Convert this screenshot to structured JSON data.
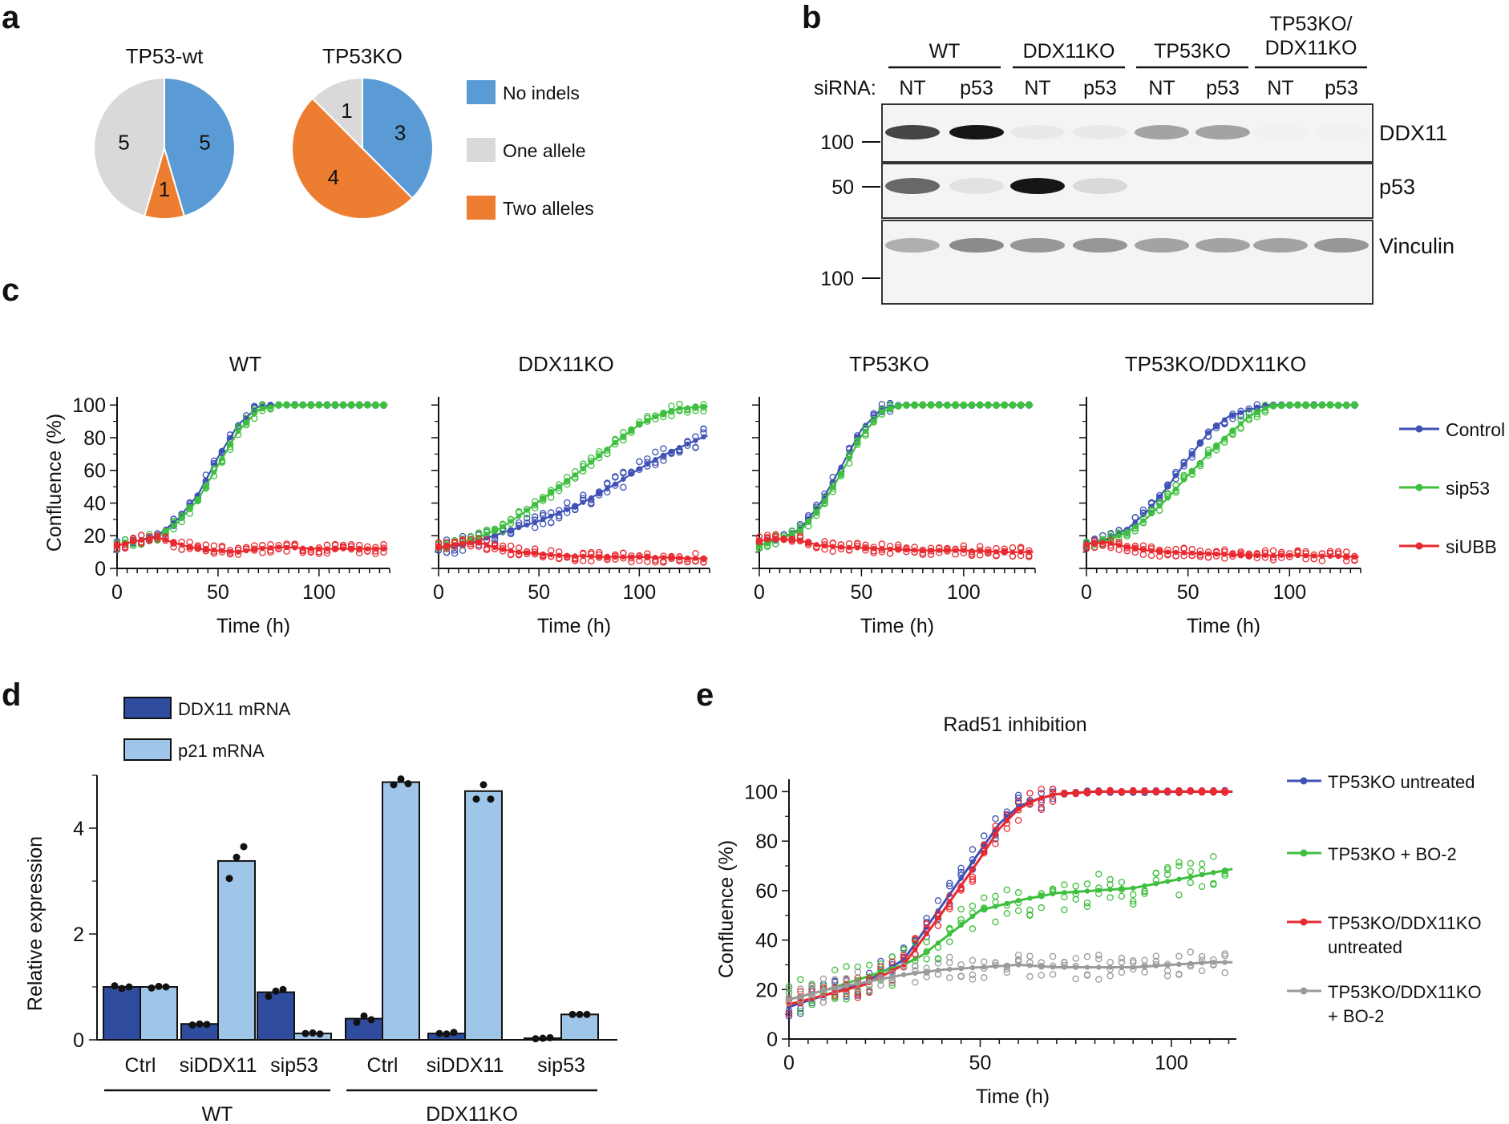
{
  "colors": {
    "blue": "#5a9bd5",
    "gray": "#d9d9d9",
    "orange": "#ed7d31",
    "control": "#3f51b5",
    "sip53": "#3fbf3f",
    "siUBB": "#e8292f",
    "bar_dark": "#2f4c9e",
    "bar_light": "#9fc5e8",
    "bo2_gray": "#9a9a9a"
  },
  "panel_a": {
    "label": "a",
    "legend": [
      {
        "text": "No indels",
        "color": "#5a9bd5"
      },
      {
        "text": "One allele",
        "color": "#d9d9d9"
      },
      {
        "text": "Two alleles",
        "color": "#ed7d31"
      }
    ]
  },
  "panel_b": {
    "label": "b",
    "groups": [
      "WT",
      "DDX11KO",
      "TP53KO",
      "TP53KO/\nDDX11KO"
    ],
    "sirna_label": "siRNA:",
    "lanes": [
      "NT",
      "p53",
      "NT",
      "p53",
      "NT",
      "p53",
      "NT",
      "p53"
    ],
    "blots": [
      {
        "name": "DDX11",
        "marker": "100",
        "band_intensity": [
          0.75,
          0.95,
          0.05,
          0.05,
          0.35,
          0.35,
          0.02,
          0.02
        ]
      },
      {
        "name": "p53",
        "marker": "50",
        "band_intensity": [
          0.6,
          0.08,
          0.95,
          0.12,
          0.0,
          0.0,
          0.0,
          0.0
        ]
      },
      {
        "name": "Vinculin",
        "marker": "100",
        "band_intensity": [
          0.3,
          0.45,
          0.4,
          0.4,
          0.35,
          0.35,
          0.35,
          0.4
        ]
      }
    ]
  },
  "panel_c": {
    "label": "c"
  },
  "panel_d": {
    "label": "d"
  },
  "panel_e": {
    "label": "e"
  },
  "chart_data": [
    {
      "id": "a1",
      "type": "pie",
      "title": "TP53-wt",
      "slices": [
        {
          "label": "No indels",
          "value": 5,
          "color": "#5a9bd5"
        },
        {
          "label": "Two alleles",
          "value": 1,
          "color": "#ed7d31"
        },
        {
          "label": "One allele",
          "value": 5,
          "color": "#d9d9d9"
        }
      ]
    },
    {
      "id": "a2",
      "type": "pie",
      "title": "TP53KO",
      "slices": [
        {
          "label": "No indels",
          "value": 3,
          "color": "#5a9bd5"
        },
        {
          "label": "Two alleles",
          "value": 4,
          "color": "#ed7d31"
        },
        {
          "label": "One allele",
          "value": 1,
          "color": "#d9d9d9"
        }
      ]
    },
    {
      "id": "c",
      "type": "line",
      "ylabel": "Confluence (%)",
      "xlabel": "Time (h)",
      "xlim": [
        0,
        135
      ],
      "ylim": [
        0,
        105
      ],
      "xticks": [
        0,
        50,
        100
      ],
      "yticks": [
        0,
        20,
        40,
        60,
        80,
        100
      ],
      "legend": [
        {
          "name": "Control",
          "color": "#3f51b5"
        },
        {
          "name": "sip53",
          "color": "#3fbf3f"
        },
        {
          "name": "siUBB",
          "color": "#e8292f"
        }
      ],
      "subplots": [
        {
          "title": "WT",
          "series": [
            {
              "name": "Control",
              "color": "#3f51b5",
              "x": [
                0,
                10,
                20,
                30,
                40,
                50,
                60,
                70,
                80,
                100,
                135
              ],
              "y": [
                14,
                17,
                20,
                30,
                45,
                68,
                88,
                99,
                100,
                100,
                100
              ]
            },
            {
              "name": "sip53",
              "color": "#3fbf3f",
              "x": [
                0,
                10,
                20,
                30,
                40,
                50,
                60,
                70,
                80,
                100,
                135
              ],
              "y": [
                14,
                17,
                19,
                28,
                42,
                63,
                84,
                97,
                100,
                100,
                100
              ]
            },
            {
              "name": "siUBB",
              "color": "#e8292f",
              "x": [
                0,
                10,
                20,
                30,
                40,
                50,
                60,
                70,
                80,
                100,
                135
              ],
              "y": [
                14,
                17,
                19,
                15,
                12,
                11,
                10,
                12,
                13,
                12,
                12
              ]
            }
          ]
        },
        {
          "title": "DDX11KO",
          "series": [
            {
              "name": "Control",
              "color": "#3f51b5",
              "x": [
                0,
                10,
                20,
                30,
                40,
                50,
                60,
                70,
                80,
                90,
                100,
                110,
                120,
                133
              ],
              "y": [
                12,
                14,
                17,
                21,
                25,
                29,
                34,
                39,
                46,
                53,
                61,
                68,
                74,
                81
              ]
            },
            {
              "name": "sip53",
              "color": "#3fbf3f",
              "x": [
                0,
                10,
                20,
                30,
                40,
                50,
                60,
                70,
                80,
                90,
                100,
                110,
                120,
                133
              ],
              "y": [
                12,
                15,
                19,
                24,
                32,
                41,
                50,
                59,
                69,
                79,
                88,
                94,
                98,
                99
              ]
            },
            {
              "name": "siUBB",
              "color": "#e8292f",
              "x": [
                0,
                10,
                20,
                30,
                40,
                50,
                60,
                80,
                100,
                133
              ],
              "y": [
                13,
                15,
                16,
                12,
                10,
                9,
                8,
                7,
                7,
                6
              ]
            }
          ]
        },
        {
          "title": "TP53KO",
          "series": [
            {
              "name": "Control",
              "color": "#3f51b5",
              "x": [
                0,
                10,
                20,
                30,
                40,
                50,
                60,
                70,
                80,
                100,
                135
              ],
              "y": [
                14,
                18,
                24,
                40,
                62,
                85,
                98,
                100,
                100,
                100,
                100
              ]
            },
            {
              "name": "sip53",
              "color": "#3fbf3f",
              "x": [
                0,
                10,
                20,
                30,
                40,
                50,
                60,
                70,
                80,
                100,
                135
              ],
              "y": [
                14,
                18,
                23,
                37,
                58,
                81,
                96,
                100,
                100,
                100,
                100
              ]
            },
            {
              "name": "siUBB",
              "color": "#e8292f",
              "x": [
                0,
                10,
                20,
                30,
                40,
                60,
                80,
                100,
                120,
                135
              ],
              "y": [
                17,
                18,
                17,
                14,
                13,
                12,
                11,
                11,
                10,
                10
              ]
            }
          ]
        },
        {
          "title": "TP53KO/DDX11KO",
          "series": [
            {
              "name": "Control",
              "color": "#3f51b5",
              "x": [
                0,
                10,
                20,
                30,
                40,
                50,
                60,
                70,
                80,
                90,
                100,
                135
              ],
              "y": [
                15,
                18,
                24,
                35,
                50,
                67,
                83,
                93,
                97,
                100,
                100,
                100
              ]
            },
            {
              "name": "sip53",
              "color": "#3fbf3f",
              "x": [
                0,
                10,
                20,
                30,
                40,
                50,
                60,
                70,
                80,
                90,
                100,
                135
              ],
              "y": [
                15,
                17,
                22,
                31,
                43,
                57,
                70,
                82,
                93,
                99,
                100,
                100
              ]
            },
            {
              "name": "siUBB",
              "color": "#e8292f",
              "x": [
                0,
                10,
                20,
                30,
                40,
                60,
                80,
                100,
                135
              ],
              "y": [
                15,
                16,
                13,
                11,
                10,
                9,
                8,
                8,
                7
              ]
            }
          ]
        }
      ]
    },
    {
      "id": "d",
      "type": "bar",
      "ylabel": "Relative expression",
      "ylim": [
        0,
        5
      ],
      "yticks": [
        0,
        2,
        4
      ],
      "categories": [
        "Ctrl",
        "siDDX11",
        "sip53",
        "Ctrl",
        "siDDX11",
        "sip53"
      ],
      "groups": [
        {
          "label": "WT",
          "from": 0,
          "to": 2
        },
        {
          "label": "DDX11KO",
          "from": 3,
          "to": 5
        }
      ],
      "series": [
        {
          "name": "DDX11 mRNA",
          "color": "#2f4c9e",
          "values": [
            1.0,
            0.3,
            0.9,
            0.4,
            0.12,
            0.03
          ],
          "points": [
            [
              1.02,
              0.97,
              1.0
            ],
            [
              0.28,
              0.3,
              0.29
            ],
            [
              0.82,
              0.92,
              0.95
            ],
            [
              0.33,
              0.45,
              0.38
            ],
            [
              0.12,
              0.11,
              0.14
            ],
            [
              0.02,
              0.03,
              0.04
            ]
          ]
        },
        {
          "name": "p21 mRNA",
          "color": "#9fc5e8",
          "values": [
            1.0,
            3.38,
            0.12,
            4.87,
            4.7,
            0.48
          ],
          "points": [
            [
              0.98,
              1.01,
              1.0
            ],
            [
              3.05,
              3.45,
              3.65
            ],
            [
              0.12,
              0.13,
              0.11
            ],
            [
              4.82,
              4.93,
              4.84
            ],
            [
              4.55,
              4.82,
              4.55
            ],
            [
              0.48,
              0.48,
              0.48
            ]
          ]
        }
      ]
    },
    {
      "id": "e",
      "type": "line",
      "title": "Rad51 inhibition",
      "ylabel": "Confluence (%)",
      "xlabel": "Time (h)",
      "xlim": [
        0,
        117
      ],
      "ylim": [
        0,
        105
      ],
      "xticks": [
        0,
        50,
        100
      ],
      "yticks": [
        0,
        20,
        40,
        60,
        80,
        100
      ],
      "series": [
        {
          "name": "TP53KO untreated",
          "color": "#3f51b5",
          "x": [
            0,
            10,
            20,
            30,
            40,
            45,
            50,
            55,
            60,
            65,
            70,
            80,
            100,
            117
          ],
          "y": [
            13,
            18,
            23,
            32,
            54,
            65,
            76,
            87,
            94,
            97,
            99,
            100,
            100,
            100
          ]
        },
        {
          "name": "TP53KO + BO-2",
          "color": "#3fbf3f",
          "x": [
            0,
            10,
            20,
            30,
            35,
            40,
            45,
            50,
            60,
            70,
            80,
            90,
            100,
            110,
            117
          ],
          "y": [
            16,
            20,
            25,
            30,
            34,
            40,
            46,
            52,
            56,
            59,
            60,
            61,
            64,
            67,
            69
          ]
        },
        {
          "name": "TP53KO/DDX11KO\nuntreated",
          "color": "#e8292f",
          "x": [
            0,
            10,
            20,
            30,
            40,
            45,
            50,
            55,
            60,
            65,
            70,
            80,
            100,
            117
          ],
          "y": [
            14,
            18,
            22,
            30,
            51,
            62,
            73,
            85,
            93,
            97,
            99,
            100,
            100,
            100
          ]
        },
        {
          "name": "TP53KO/DDX11KO\n+ BO-2",
          "color": "#9a9a9a",
          "x": [
            0,
            10,
            20,
            30,
            40,
            50,
            60,
            70,
            80,
            90,
            100,
            110,
            117
          ],
          "y": [
            16,
            20,
            23,
            26,
            28,
            29,
            30,
            29,
            29,
            29,
            30,
            31,
            31
          ]
        }
      ]
    }
  ]
}
